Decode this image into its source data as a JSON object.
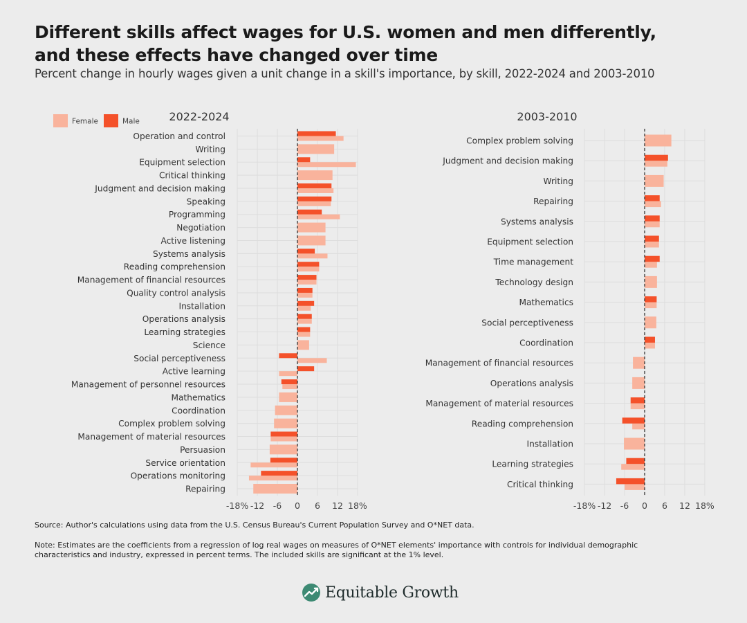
{
  "title_lines": [
    "Different skills affect wages for U.S. women and men differently,",
    "and these effects have changed over time"
  ],
  "subtitle": "Percent change in hourly wages given a unit change in a skill's importance, by skill, 2022-2024 and 2003-2010",
  "legend": {
    "female": "Female",
    "male": "Male"
  },
  "colors": {
    "female": "#f9b39c",
    "male": "#f4512a",
    "zero_line": "#333333",
    "grid": "#dddddd"
  },
  "source": "Source: Author's calculations using data from the U.S. Census Bureau's Current Population Survey and O*NET data.",
  "note": "Note: Estimates are the coefficients from a regression of log real wages on measures of O*NET elements' importance with controls for individual demographic characteristics and industry, expressed in percent terms. The included skills are significant at the 1% level.",
  "brand": {
    "name": "Equitable Growth",
    "icon": "chart-leaf-icon"
  },
  "chart_data": [
    {
      "type": "bar",
      "orientation": "horizontal",
      "title": "2022-2024",
      "xlim": [
        -18,
        18
      ],
      "xticks": [
        "-18%",
        "-12",
        "-6",
        "0",
        "6",
        "12",
        "18%"
      ],
      "xtick_values": [
        -18,
        -12,
        -6,
        0,
        6,
        12,
        18
      ],
      "legend_position": "top-left",
      "categories": [
        "Operation and control",
        "Writing",
        "Equipment selection",
        "Critical thinking",
        "Judgment and decision making",
        "Speaking",
        "Programming",
        "Negotiation",
        "Active listening",
        "Systems analysis",
        "Reading comprehension",
        "Management of financial resources",
        "Quality control analysis",
        "Installation",
        "Operations analysis",
        "Learning strategies",
        "Science",
        "Social perceptiveness",
        "Active learning",
        "Management of personnel resources",
        "Mathematics",
        "Coordination",
        "Complex problem solving",
        "Management of material resources",
        "Persuasion",
        "Service orientation",
        "Operations monitoring",
        "Repairing"
      ],
      "series": [
        {
          "name": "Female",
          "values": [
            13.8,
            11,
            17.5,
            10.5,
            10.8,
            10,
            12.7,
            8.4,
            8.4,
            9,
            6.5,
            5.7,
            4.5,
            4,
            4.3,
            3.8,
            3.5,
            8.8,
            -5.5,
            -4.5,
            -5.5,
            -6.7,
            -7,
            -8,
            -8.3,
            -14,
            -14.5,
            -13.2
          ]
        },
        {
          "name": "Male",
          "values": [
            11.5,
            null,
            3.8,
            null,
            10.2,
            10.2,
            7.3,
            null,
            null,
            5.2,
            6.5,
            5.7,
            4.5,
            5,
            4.3,
            3.8,
            null,
            -5.5,
            5,
            -4.8,
            null,
            null,
            null,
            -8,
            null,
            -8.1,
            -10.9,
            null
          ]
        }
      ]
    },
    {
      "type": "bar",
      "orientation": "horizontal",
      "title": "2003-2010",
      "xlim": [
        -18,
        18
      ],
      "xticks": [
        "-18%",
        "-12",
        "-6",
        "0",
        "6",
        "12",
        "18%"
      ],
      "xtick_values": [
        -18,
        -12,
        -6,
        0,
        6,
        12,
        18
      ],
      "categories": [
        "Complex problem solving",
        "Judgment and decision making",
        "Writing",
        "Repairing",
        "Systems analysis",
        "Equipment selection",
        "Time management",
        "Technology design",
        "Mathematics",
        "Social perceptiveness",
        "Coordination",
        "Management of financial resources",
        "Operations analysis",
        "Management of material resources",
        "Reading comprehension",
        "Installation",
        "Learning strategies",
        "Critical thinking"
      ],
      "series": [
        {
          "name": "Female",
          "values": [
            8,
            6.8,
            5.7,
            4.9,
            4.5,
            4.3,
            3.7,
            3.7,
            3.6,
            3.5,
            3.1,
            -3.5,
            -3.7,
            -4.2,
            -3.7,
            -6.2,
            -7,
            -6
          ]
        },
        {
          "name": "Male",
          "values": [
            null,
            7,
            null,
            4.5,
            4.5,
            4.3,
            4.5,
            null,
            3.6,
            null,
            3.1,
            null,
            null,
            -4.2,
            -6.7,
            null,
            -5.5,
            -8.5
          ]
        }
      ]
    }
  ]
}
